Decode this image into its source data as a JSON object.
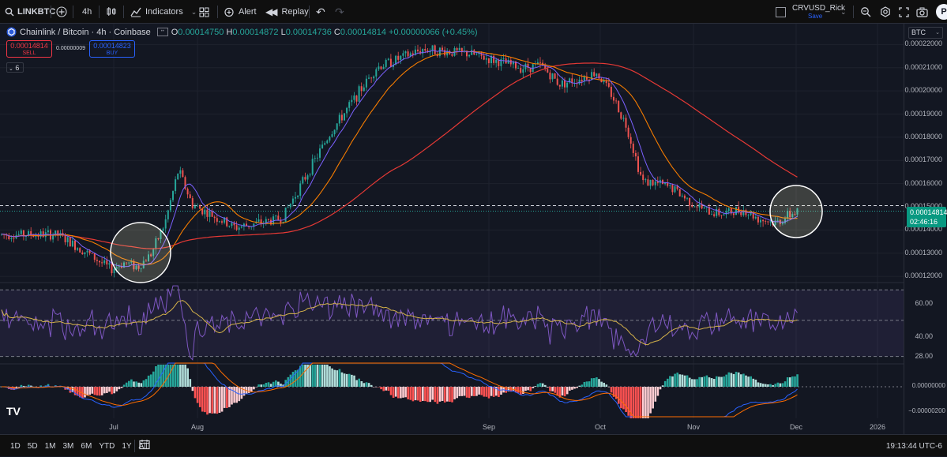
{
  "toolbar": {
    "symbol": "LINKBTC",
    "interval": "4h",
    "indicators_label": "Indicators",
    "alert_label": "Alert",
    "replay_label": "Replay",
    "layout_name": "CRVUSD_Rick",
    "layout_status": "Save",
    "avatar_letter": "P"
  },
  "legend": {
    "title": "Chainlink / Bitcoin · 4h · Coinbase",
    "o_label": "O",
    "o_value": "0.00014750",
    "h_label": "H",
    "h_value": "0.00014872",
    "l_label": "L",
    "l_value": "0.00014736",
    "c_label": "C",
    "c_value": "0.00014814",
    "change": "+0.00000066 (+0.45%)",
    "collapse_count": "6"
  },
  "trade": {
    "sell_price": "0.00014814",
    "sell_label": "SELL",
    "spread": "0.00000009",
    "buy_price": "0.00014823",
    "buy_label": "BUY"
  },
  "price_axis": {
    "currency": "BTC",
    "ticks": [
      "0.00022000",
      "0.00021000",
      "0.00020000",
      "0.00019000",
      "0.00018000",
      "0.00017000",
      "0.00016000",
      "0.00015000",
      "0.00014000",
      "0.00013000",
      "0.00012000"
    ],
    "current_price": "0.00014814",
    "countdown": "02:46:16"
  },
  "rsi_axis": {
    "ticks": [
      "60.00",
      "40.00",
      "28.00"
    ]
  },
  "macd_axis": {
    "ticks": [
      "0.00000000",
      "−0.00000200"
    ]
  },
  "time_axis": {
    "labels": [
      "Jul",
      "Aug",
      "Sep",
      "Oct",
      "Nov",
      "Dec",
      "2026"
    ]
  },
  "bottom": {
    "timeframes": [
      "1D",
      "5D",
      "1M",
      "3M",
      "6M",
      "YTD",
      "1Y",
      "All"
    ],
    "clock": "19:13:44 UTC-6"
  },
  "colors": {
    "up": "#26a69a",
    "down": "#ef5350",
    "ma_fast": "#7b61ff",
    "ma_mid": "#f57c00",
    "ma_slow": "#e53935",
    "rsi": "#7e57c2",
    "rsi_ma": "#d4b24a",
    "sell": "#f23645",
    "buy": "#2962ff"
  },
  "chart_data": [
    {
      "type": "line",
      "title": "Chainlink / Bitcoin · 4h · Coinbase",
      "series_kind": "candlestick price path (approximate closes)",
      "x": [
        "Jun 10",
        "Jun 20",
        "Jun 30",
        "Jul 5",
        "Jul 10",
        "Jul 15",
        "Jul 20",
        "Jul 25",
        "Jul 30",
        "Aug 5",
        "Aug 10",
        "Aug 15",
        "Aug 20",
        "Aug 25",
        "Aug 30",
        "Sep 5",
        "Sep 10",
        "Sep 15",
        "Sep 20",
        "Sep 25",
        "Sep 30",
        "Oct 5",
        "Oct 10",
        "Oct 15",
        "Oct 20",
        "Oct 25",
        "Oct 30",
        "Nov 5",
        "Nov 10",
        "Nov 15",
        "Nov 20",
        "Nov 25",
        "Dec 1"
      ],
      "values": [
        0.000138,
        0.000131,
        0.000123,
        0.000126,
        0.000124,
        0.00013,
        0.000143,
        0.000166,
        0.000151,
        0.000141,
        0.000145,
        0.000181,
        0.00021,
        0.000218,
        0.000216,
        0.000212,
        0.00021,
        0.000211,
        0.000203,
        0.000205,
        0.000208,
        0.000198,
        0.000184,
        0.000161,
        0.00016,
        0.000158,
        0.000153,
        0.000148,
        0.000147,
        0.000149,
        0.000145,
        0.000143,
        0.000148
      ],
      "ylim": [
        0.000118,
        0.000229
      ],
      "current": 0.00014814,
      "annotations": [
        "circle near Jul 10-15 breakout",
        "circle near current price Dec 1"
      ]
    },
    {
      "type": "line",
      "series_kind": "RSI with moving average",
      "ylim": [
        24,
        72
      ],
      "levels": [
        60,
        40,
        28
      ]
    },
    {
      "type": "bar",
      "series_kind": "MACD histogram with signal lines",
      "zero_line": 0
    }
  ]
}
